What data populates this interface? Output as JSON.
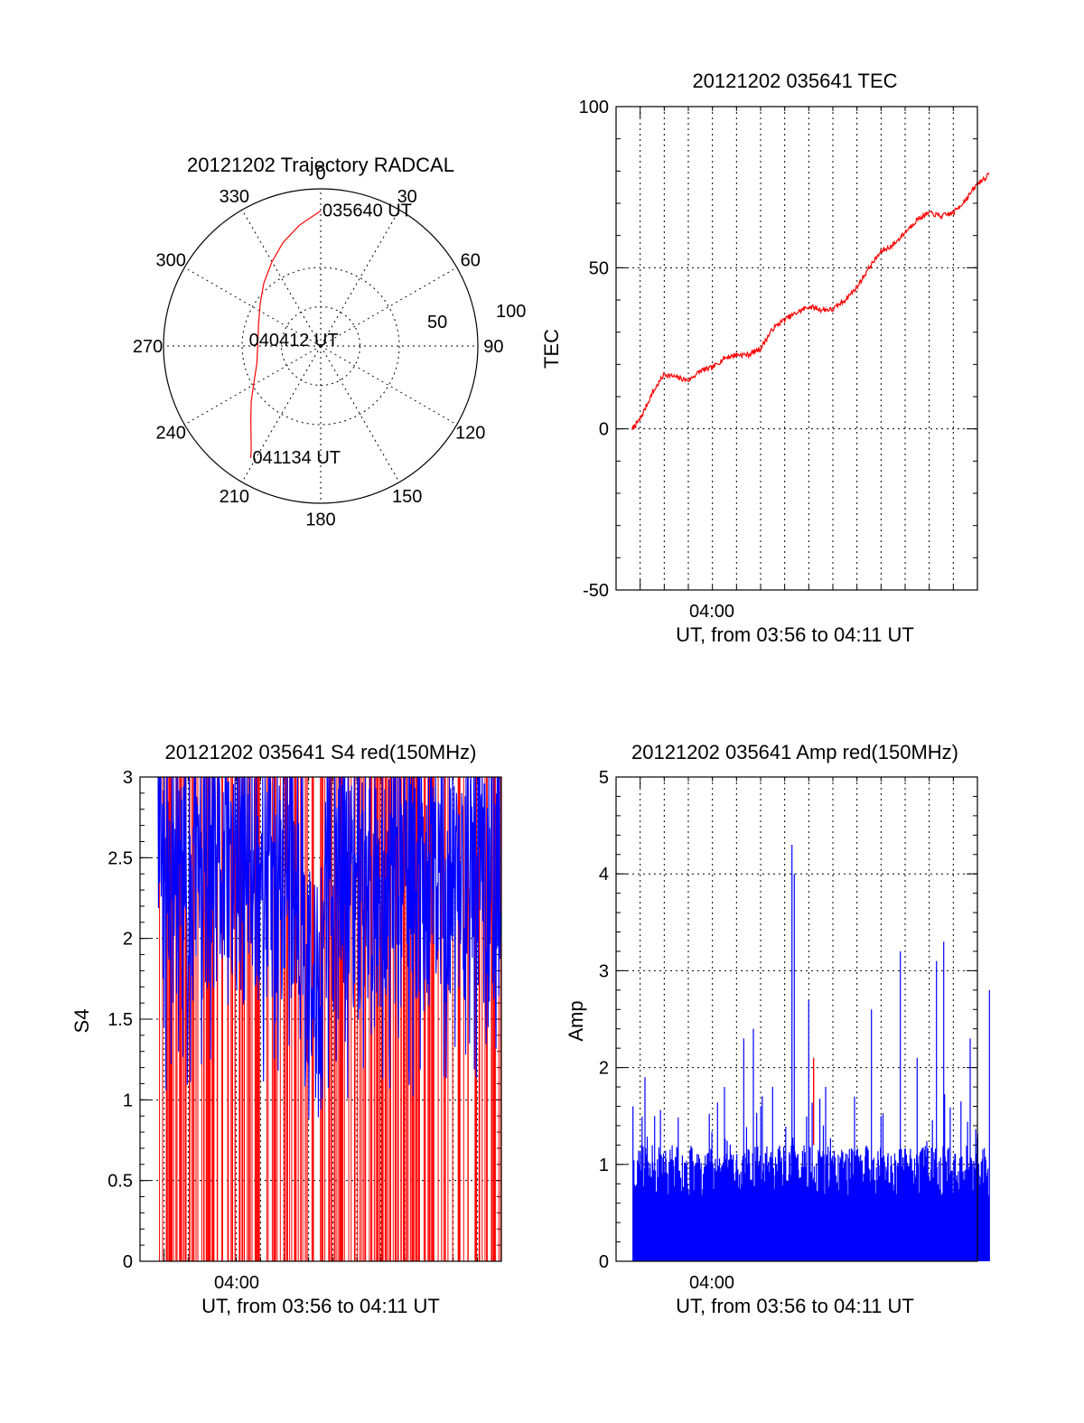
{
  "chart_data": [
    {
      "type": "polar",
      "title": "20121202 Trajectory RADCAL",
      "angle_ticks": [
        "0",
        "30",
        "60",
        "90",
        "120",
        "150",
        "180",
        "210",
        "240",
        "270",
        "300",
        "330"
      ],
      "radial_ticks": [
        "50",
        "100"
      ],
      "rlim": [
        0,
        100
      ],
      "annotations": [
        {
          "text": "035640 UT",
          "az": 0,
          "r": 86
        },
        {
          "text": "040412 UT",
          "az": 270,
          "r": 14
        },
        {
          "text": "041134 UT",
          "az": 212,
          "r": 84
        }
      ],
      "series": [
        {
          "color": "#ff0000",
          "points": [
            [
              0,
              86
            ],
            [
              350,
              78
            ],
            [
              340,
              70
            ],
            [
              330,
              62
            ],
            [
              318,
              54
            ],
            [
              305,
              47
            ],
            [
              290,
              42
            ],
            [
              272,
              40
            ],
            [
              255,
              42
            ],
            [
              242,
              48
            ],
            [
              232,
              56
            ],
            [
              224,
              64
            ],
            [
              218,
              72
            ],
            [
              214,
              79
            ],
            [
              212,
              84
            ]
          ]
        }
      ]
    },
    {
      "type": "line",
      "title": "20121202 035641 TEC",
      "ylabel": "TEC",
      "xlabel": "UT, from 03:56 to 04:11 UT",
      "x_tick_labels": [
        "04:00"
      ],
      "y_ticks": [
        "-50",
        "0",
        "50",
        "100"
      ],
      "ylim": [
        -50,
        100
      ],
      "xlim_minutes": [
        3.0,
        18.0
      ],
      "grid": true,
      "series": [
        {
          "color": "#ff0000",
          "points": [
            [
              3.67,
              0
            ],
            [
              4.0,
              3
            ],
            [
              4.5,
              11
            ],
            [
              5.0,
              17
            ],
            [
              5.5,
              16
            ],
            [
              6.0,
              15
            ],
            [
              6.5,
              18
            ],
            [
              7.0,
              19
            ],
            [
              7.5,
              22
            ],
            [
              8.0,
              23
            ],
            [
              8.5,
              23
            ],
            [
              9.0,
              25
            ],
            [
              9.5,
              31
            ],
            [
              10.0,
              34
            ],
            [
              10.5,
              36
            ],
            [
              11.0,
              38
            ],
            [
              11.5,
              37
            ],
            [
              12.0,
              37
            ],
            [
              12.5,
              40
            ],
            [
              13.0,
              44
            ],
            [
              13.5,
              50
            ],
            [
              14.0,
              55
            ],
            [
              14.5,
              57
            ],
            [
              15.0,
              61
            ],
            [
              15.5,
              65
            ],
            [
              16.0,
              67
            ],
            [
              16.5,
              66
            ],
            [
              17.0,
              67
            ],
            [
              17.5,
              71
            ],
            [
              18.0,
              76
            ],
            [
              18.5,
              79
            ]
          ]
        }
      ]
    },
    {
      "type": "line",
      "title": "20121202 035641 S4 red(150MHz)",
      "ylabel": "S4",
      "xlabel": "UT, from 03:56 to 04:11 UT",
      "x_tick_labels": [
        "04:00"
      ],
      "y_ticks": [
        "0",
        "0.5",
        "1",
        "1.5",
        "2",
        "2.5",
        "3"
      ],
      "ylim": [
        0,
        3
      ],
      "xlim_minutes": [
        3.0,
        18.0
      ],
      "grid": true,
      "series": [
        {
          "color": "#ff0000",
          "style": "dense-spikes"
        },
        {
          "color": "#0000ff",
          "style": "noisy-line",
          "range_estimate": [
            0.6,
            3.0
          ]
        }
      ]
    },
    {
      "type": "bar",
      "title": "20121202 035641 Amp red(150MHz)",
      "ylabel": "Amp",
      "xlabel": "UT, from 03:56 to 04:11 UT",
      "x_tick_labels": [
        "04:00"
      ],
      "y_ticks": [
        "0",
        "1",
        "2",
        "3",
        "4",
        "5"
      ],
      "ylim": [
        0,
        5
      ],
      "xlim_minutes": [
        3.0,
        18.0
      ],
      "grid": true,
      "series": [
        {
          "color": "#0000ff",
          "style": "dense-spikes",
          "typical": 1.0,
          "peaks": [
            [
              3.7,
              1.6
            ],
            [
              4.2,
              1.9
            ],
            [
              4.6,
              1.5
            ],
            [
              7.5,
              1.8
            ],
            [
              8.3,
              2.3
            ],
            [
              8.7,
              2.4
            ],
            [
              9.5,
              1.8
            ],
            [
              10.3,
              4.3
            ],
            [
              10.4,
              4.0
            ],
            [
              11.0,
              2.7
            ],
            [
              11.7,
              1.8
            ],
            [
              12.9,
              1.7
            ],
            [
              13.6,
              2.6
            ],
            [
              14.0,
              1.5
            ],
            [
              14.8,
              3.2
            ],
            [
              15.5,
              2.1
            ],
            [
              16.3,
              3.1
            ],
            [
              16.6,
              3.3
            ],
            [
              17.7,
              2.3
            ],
            [
              18.5,
              2.8
            ]
          ]
        },
        {
          "color": "#ff0000",
          "style": "single-spike",
          "peaks": [
            [
              11.2,
              2.1
            ]
          ]
        }
      ]
    }
  ]
}
